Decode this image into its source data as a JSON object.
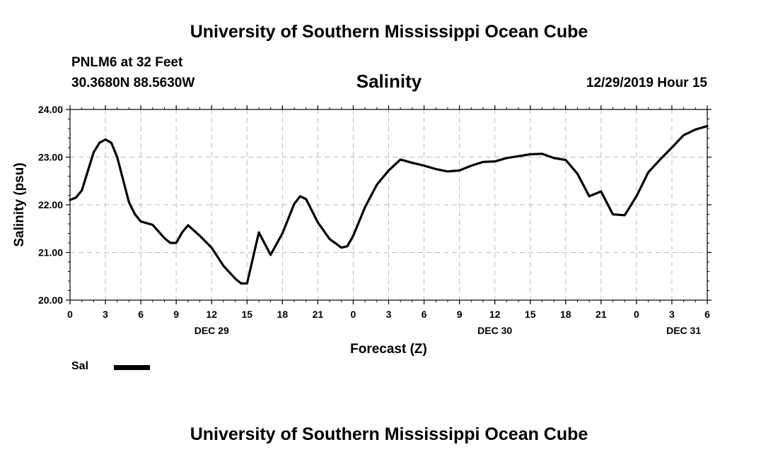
{
  "header": {
    "title": "University of Southern Mississippi Ocean Cube",
    "station": "PNLM6 at 32 Feet",
    "coordinates": "30.3680N 88.5630W",
    "variable": "Salinity",
    "datetime": "12/29/2019 Hour 15"
  },
  "footer": {
    "title": "University of Southern Mississippi Ocean Cube"
  },
  "legend": {
    "series_label": "Sal",
    "color": "#000000"
  },
  "chart_data": {
    "type": "line",
    "xlabel": "Forecast (Z)",
    "ylabel": "Salinity (psu)",
    "ylim": [
      20.0,
      24.0
    ],
    "xlim": [
      0,
      54
    ],
    "grid": true,
    "grid_style": "dashed",
    "y_ticks": [
      "20.00",
      "21.00",
      "22.00",
      "23.00",
      "24.00"
    ],
    "x_tick_hours": [
      0,
      3,
      6,
      9,
      12,
      15,
      18,
      21,
      24,
      27,
      30,
      33,
      36,
      39,
      42,
      45,
      48,
      51,
      54
    ],
    "x_tick_labels": [
      "0",
      "3",
      "6",
      "9",
      "12",
      "15",
      "18",
      "21",
      "0",
      "3",
      "6",
      "9",
      "12",
      "15",
      "18",
      "21",
      "0",
      "3",
      "6"
    ],
    "date_labels": [
      {
        "hour": 12,
        "label": "DEC 29"
      },
      {
        "hour": 36,
        "label": "DEC 30"
      },
      {
        "hour": 52,
        "label": "DEC 31"
      }
    ],
    "series": [
      {
        "name": "Sal",
        "color": "#000000",
        "x": [
          0,
          0.5,
          1,
          2,
          2.5,
          3,
          3.5,
          4,
          5,
          5.5,
          6,
          7,
          8,
          8.5,
          9,
          9.5,
          10,
          11,
          12,
          13,
          14,
          14.5,
          15,
          16,
          17,
          18,
          19,
          19.5,
          20,
          21,
          22,
          23,
          23.5,
          24,
          25,
          26,
          27,
          28,
          29,
          30,
          31,
          32,
          33,
          34,
          35,
          36,
          37,
          38,
          39,
          40,
          41,
          42,
          43,
          44,
          45,
          46,
          47,
          48,
          49,
          50,
          51,
          52,
          53,
          54
        ],
        "y": [
          22.1,
          22.15,
          22.3,
          23.1,
          23.3,
          23.37,
          23.3,
          23.0,
          22.05,
          21.8,
          21.65,
          21.58,
          21.3,
          21.2,
          21.2,
          21.42,
          21.57,
          21.35,
          21.1,
          20.72,
          20.45,
          20.35,
          20.35,
          21.42,
          20.95,
          21.4,
          22.02,
          22.18,
          22.12,
          21.63,
          21.28,
          21.1,
          21.13,
          21.35,
          21.95,
          22.42,
          22.72,
          22.95,
          22.88,
          22.82,
          22.75,
          22.7,
          22.72,
          22.82,
          22.9,
          22.91,
          22.98,
          23.02,
          23.06,
          23.07,
          22.98,
          22.94,
          22.65,
          22.18,
          22.28,
          21.8,
          21.78,
          22.18,
          22.68,
          22.95,
          23.2,
          23.46,
          23.58,
          23.65
        ]
      }
    ]
  }
}
